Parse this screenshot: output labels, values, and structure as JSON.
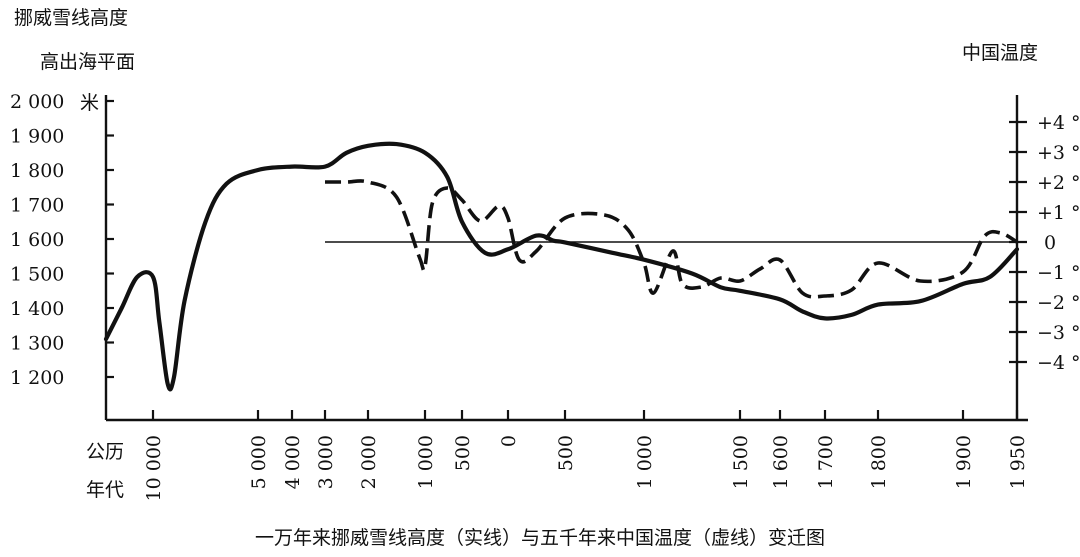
{
  "chart_data": {
    "type": "line",
    "title": "一万年来挪威雪线高度（实线）与五千年来中国温度（虚线）变迁图",
    "left_axis": {
      "label_line1": "挪威雪线高度",
      "label_line2": "高出海平面",
      "unit": "米",
      "ticks": [
        {
          "value": 2000,
          "label": "2 000"
        },
        {
          "value": 1900,
          "label": "1 900"
        },
        {
          "value": 1800,
          "label": "1 800"
        },
        {
          "value": 1700,
          "label": "1 700"
        },
        {
          "value": 1600,
          "label": "1 600"
        },
        {
          "value": 1500,
          "label": "1 500"
        },
        {
          "value": 1400,
          "label": "1 400"
        },
        {
          "value": 1300,
          "label": "1 300"
        },
        {
          "value": 1200,
          "label": "1 200"
        }
      ]
    },
    "right_axis": {
      "label": "中国温度",
      "ticks": [
        {
          "value": 4,
          "label": "+4 °"
        },
        {
          "value": 3,
          "label": "+3 °"
        },
        {
          "value": 2,
          "label": "+2 °"
        },
        {
          "value": 1,
          "label": "+1 °"
        },
        {
          "value": 0,
          "label": "0"
        },
        {
          "value": -1,
          "label": "−1 °"
        },
        {
          "value": -2,
          "label": "−2 °"
        },
        {
          "value": -3,
          "label": "−3 °"
        },
        {
          "value": -4,
          "label": "−4 °"
        }
      ]
    },
    "x_axis": {
      "label_line1": "公历",
      "label_line2": "年代",
      "ticks": [
        {
          "value": "BC10000",
          "label": "10 000"
        },
        {
          "value": "BC5000",
          "label": "5 000"
        },
        {
          "value": "BC4000",
          "label": "4 000"
        },
        {
          "value": "BC3000",
          "label": "3 000"
        },
        {
          "value": "BC2000",
          "label": "2 000"
        },
        {
          "value": "BC1000",
          "label": "1 000"
        },
        {
          "value": "BC500",
          "label": "500"
        },
        {
          "value": "0",
          "label": "0"
        },
        {
          "value": "AD500",
          "label": "500"
        },
        {
          "value": "AD1000",
          "label": "1 000"
        },
        {
          "value": "AD1500",
          "label": "1 500"
        },
        {
          "value": "AD1600",
          "label": "1 600"
        },
        {
          "value": "AD1700",
          "label": "1 700"
        },
        {
          "value": "AD1800",
          "label": "1 800"
        },
        {
          "value": "AD1900",
          "label": "1 900"
        },
        {
          "value": "AD1950",
          "label": "1 950"
        }
      ]
    },
    "series": [
      {
        "axis": "left",
        "style": "solid",
        "points": [
          [
            "BC11500",
            1310
          ],
          [
            "BC11000",
            1400
          ],
          [
            "BC10500",
            1490
          ],
          [
            "BC10000",
            1490
          ],
          [
            "BC9700",
            1360
          ],
          [
            "BC9300",
            1180
          ],
          [
            "BC9000",
            1200
          ],
          [
            "BC8500",
            1420
          ],
          [
            "BC7500",
            1650
          ],
          [
            "BC6500",
            1760
          ],
          [
            "BC5000",
            1800
          ],
          [
            "BC4000",
            1810
          ],
          [
            "BC3000",
            1810
          ],
          [
            "BC2500",
            1850
          ],
          [
            "BC2000",
            1870
          ],
          [
            "BC1500",
            1875
          ],
          [
            "BC1000",
            1850
          ],
          [
            "BC700",
            1780
          ],
          [
            "BC500",
            1650
          ],
          [
            "BC250",
            1560
          ],
          [
            "0",
            1570
          ],
          [
            "AD250",
            1610
          ],
          [
            "AD400",
            1595
          ],
          [
            "AD500",
            1590
          ],
          [
            "AD800",
            1560
          ],
          [
            "AD1000",
            1540
          ],
          [
            "AD1250",
            1500
          ],
          [
            "AD1400",
            1460
          ],
          [
            "AD1500",
            1450
          ],
          [
            "AD1600",
            1425
          ],
          [
            "AD1650",
            1390
          ],
          [
            "AD1700",
            1370
          ],
          [
            "AD1750",
            1380
          ],
          [
            "AD1800",
            1410
          ],
          [
            "AD1850",
            1420
          ],
          [
            "AD1900",
            1470
          ],
          [
            "AD1925",
            1490
          ],
          [
            "AD1950",
            1570
          ]
        ]
      },
      {
        "axis": "right",
        "style": "dashed",
        "points": [
          [
            "BC3000",
            2.0
          ],
          [
            "BC2500",
            2.0
          ],
          [
            "BC2000",
            2.0
          ],
          [
            "BC1500",
            1.5
          ],
          [
            "BC1100",
            -0.5
          ],
          [
            "BC1000",
            -0.8
          ],
          [
            "BC900",
            1.3
          ],
          [
            "BC700",
            1.8
          ],
          [
            "BC500",
            1.4
          ],
          [
            "BC300",
            0.7
          ],
          [
            "BC100",
            1.2
          ],
          [
            "0",
            0.8
          ],
          [
            "AD100",
            -0.6
          ],
          [
            "AD250",
            -0.3
          ],
          [
            "AD500",
            0.8
          ],
          [
            "AD750",
            0.9
          ],
          [
            "AD900",
            0.4
          ],
          [
            "AD1000",
            -0.7
          ],
          [
            "AD1050",
            -1.7
          ],
          [
            "AD1150",
            -0.3
          ],
          [
            "AD1200",
            -1.4
          ],
          [
            "AD1300",
            -1.5
          ],
          [
            "AD1400",
            -1.2
          ],
          [
            "AD1500",
            -1.3
          ],
          [
            "AD1550",
            -0.9
          ],
          [
            "AD1600",
            -0.6
          ],
          [
            "AD1650",
            -1.7
          ],
          [
            "AD1700",
            -1.8
          ],
          [
            "AD1750",
            -1.6
          ],
          [
            "AD1800",
            -0.7
          ],
          [
            "AD1850",
            -1.3
          ],
          [
            "AD1900",
            -1.0
          ],
          [
            "AD1920",
            0.2
          ],
          [
            "AD1935",
            0.3
          ],
          [
            "AD1950",
            0.0
          ]
        ]
      }
    ]
  }
}
